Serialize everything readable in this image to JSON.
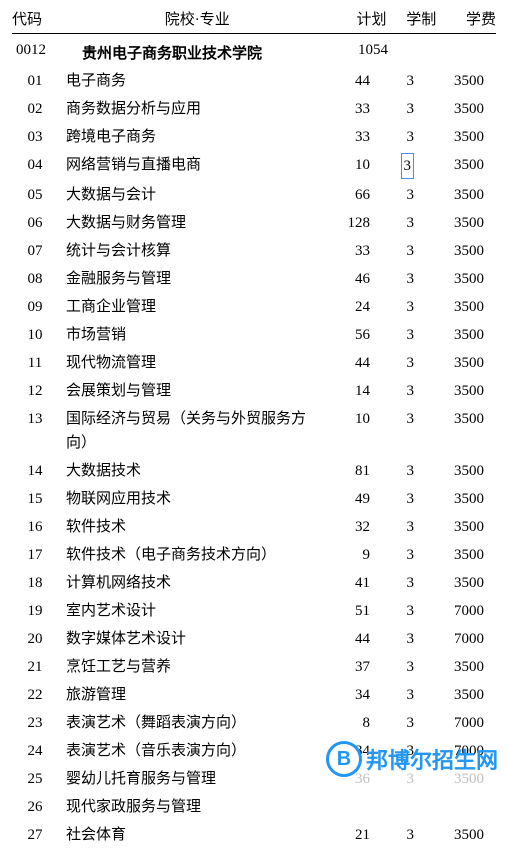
{
  "headers": {
    "code": "代码",
    "name": "院校·专业",
    "plan": "计划",
    "duration": "学制",
    "fee": "学费"
  },
  "school": {
    "code": "0012",
    "name": "贵州电子商务职业技术学院",
    "plan": "1054"
  },
  "rows": [
    {
      "code": "01",
      "name": "电子商务",
      "plan": "44",
      "duration": "3",
      "fee": "3500",
      "highlight_duration": false,
      "faded": false
    },
    {
      "code": "02",
      "name": "商务数据分析与应用",
      "plan": "33",
      "duration": "3",
      "fee": "3500",
      "highlight_duration": false,
      "faded": false
    },
    {
      "code": "03",
      "name": "跨境电子商务",
      "plan": "33",
      "duration": "3",
      "fee": "3500",
      "highlight_duration": false,
      "faded": false
    },
    {
      "code": "04",
      "name": "网络营销与直播电商",
      "plan": "10",
      "duration": "3",
      "fee": "3500",
      "highlight_duration": true,
      "faded": false
    },
    {
      "code": "05",
      "name": "大数据与会计",
      "plan": "66",
      "duration": "3",
      "fee": "3500",
      "highlight_duration": false,
      "faded": false
    },
    {
      "code": "06",
      "name": "大数据与财务管理",
      "plan": "128",
      "duration": "3",
      "fee": "3500",
      "highlight_duration": false,
      "faded": false
    },
    {
      "code": "07",
      "name": "统计与会计核算",
      "plan": "33",
      "duration": "3",
      "fee": "3500",
      "highlight_duration": false,
      "faded": false
    },
    {
      "code": "08",
      "name": "金融服务与管理",
      "plan": "46",
      "duration": "3",
      "fee": "3500",
      "highlight_duration": false,
      "faded": false
    },
    {
      "code": "09",
      "name": "工商企业管理",
      "plan": "24",
      "duration": "3",
      "fee": "3500",
      "highlight_duration": false,
      "faded": false
    },
    {
      "code": "10",
      "name": "市场营销",
      "plan": "56",
      "duration": "3",
      "fee": "3500",
      "highlight_duration": false,
      "faded": false
    },
    {
      "code": "11",
      "name": "现代物流管理",
      "plan": "44",
      "duration": "3",
      "fee": "3500",
      "highlight_duration": false,
      "faded": false
    },
    {
      "code": "12",
      "name": "会展策划与管理",
      "plan": "14",
      "duration": "3",
      "fee": "3500",
      "highlight_duration": false,
      "faded": false
    },
    {
      "code": "13",
      "name": "国际经济与贸易（关务与外贸服务方向）",
      "plan": "10",
      "duration": "3",
      "fee": "3500",
      "highlight_duration": false,
      "faded": false
    },
    {
      "code": "14",
      "name": "大数据技术",
      "plan": "81",
      "duration": "3",
      "fee": "3500",
      "highlight_duration": false,
      "faded": false
    },
    {
      "code": "15",
      "name": "物联网应用技术",
      "plan": "49",
      "duration": "3",
      "fee": "3500",
      "highlight_duration": false,
      "faded": false
    },
    {
      "code": "16",
      "name": "软件技术",
      "plan": "32",
      "duration": "3",
      "fee": "3500",
      "highlight_duration": false,
      "faded": false
    },
    {
      "code": "17",
      "name": "软件技术（电子商务技术方向）",
      "plan": "9",
      "duration": "3",
      "fee": "3500",
      "highlight_duration": false,
      "faded": false
    },
    {
      "code": "18",
      "name": "计算机网络技术",
      "plan": "41",
      "duration": "3",
      "fee": "3500",
      "highlight_duration": false,
      "faded": false
    },
    {
      "code": "19",
      "name": "室内艺术设计",
      "plan": "51",
      "duration": "3",
      "fee": "7000",
      "highlight_duration": false,
      "faded": false
    },
    {
      "code": "20",
      "name": "数字媒体艺术设计",
      "plan": "44",
      "duration": "3",
      "fee": "7000",
      "highlight_duration": false,
      "faded": false
    },
    {
      "code": "21",
      "name": "烹饪工艺与营养",
      "plan": "37",
      "duration": "3",
      "fee": "3500",
      "highlight_duration": false,
      "faded": false
    },
    {
      "code": "22",
      "name": "旅游管理",
      "plan": "34",
      "duration": "3",
      "fee": "3500",
      "highlight_duration": false,
      "faded": false
    },
    {
      "code": "23",
      "name": "表演艺术（舞蹈表演方向）",
      "plan": "8",
      "duration": "3",
      "fee": "7000",
      "highlight_duration": false,
      "faded": false
    },
    {
      "code": "24",
      "name": "表演艺术（音乐表演方向）",
      "plan": "34",
      "duration": "3",
      "fee": "7000",
      "highlight_duration": false,
      "faded": false
    },
    {
      "code": "25",
      "name": "婴幼儿托育服务与管理",
      "plan": "36",
      "duration": "3",
      "fee": "3500",
      "highlight_duration": false,
      "faded": true
    },
    {
      "code": "26",
      "name": "现代家政服务与管理",
      "plan": "",
      "duration": "",
      "fee": "",
      "highlight_duration": false,
      "faded": false
    },
    {
      "code": "27",
      "name": "社会体育",
      "plan": "21",
      "duration": "3",
      "fee": "3500",
      "highlight_duration": false,
      "faded": false
    }
  ],
  "watermark": {
    "logo_text": "B",
    "text": "邦博尔招生网",
    "logo_color": "#2196f3",
    "text_color": "#2196f3"
  },
  "styling": {
    "background_color": "#ffffff",
    "text_color": "#000000",
    "font_size": 15,
    "faded_color": "#c0c0c0",
    "highlight_border_color": "#4a90e2"
  }
}
